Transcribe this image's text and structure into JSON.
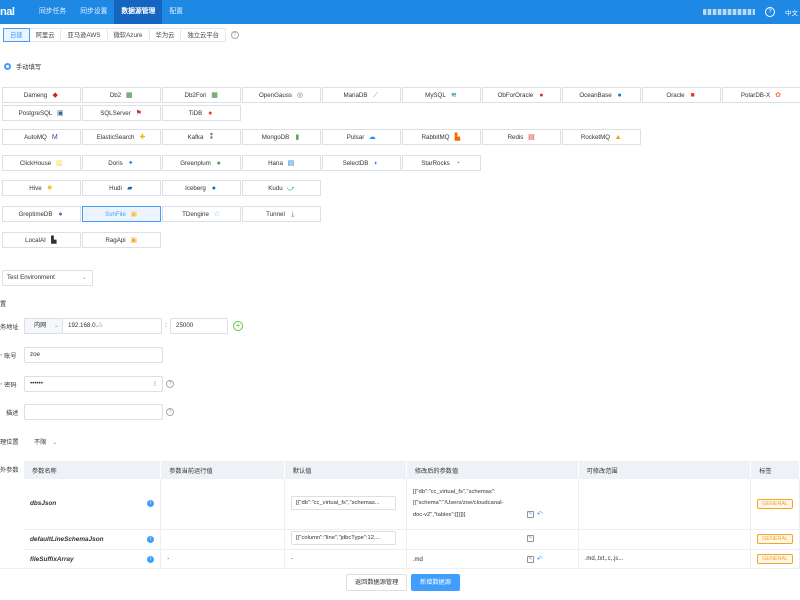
{
  "topbar": {
    "logo": "nal",
    "nav": [
      "同步任务",
      "同步设置",
      "数据源管理",
      "配置"
    ],
    "active_index": 2,
    "help": "?",
    "lang": "中文"
  },
  "cloud_tabs": [
    "自建",
    "阿里云",
    "亚马逊AWS",
    "微软Azure",
    "华为云",
    "独立云平台"
  ],
  "cloud_active": 0,
  "manual_label": "手动填写",
  "datasources": [
    [
      {
        "name": "Dameng",
        "icon": "dameng-icon",
        "color": "#c62828"
      },
      {
        "name": "Db2",
        "icon": "db2-icon",
        "color": "#2e7d32"
      },
      {
        "name": "Db2Fori",
        "icon": "db2fori-icon",
        "color": "#2e7d32"
      },
      {
        "name": "OpenGauss",
        "icon": "opengauss-icon",
        "color": "#757575"
      },
      {
        "name": "MariaDB",
        "icon": "mariadb-icon",
        "color": "#c0765a"
      },
      {
        "name": "MySQL",
        "icon": "mysql-icon",
        "color": "#00758f"
      },
      {
        "name": "ObForOracle",
        "icon": "obfororacle-icon",
        "color": "#d32f2f"
      },
      {
        "name": "OceanBase",
        "icon": "oceanbase-icon",
        "color": "#1976d2"
      },
      {
        "name": "Oracle",
        "icon": "oracle-icon",
        "color": "#e53935"
      },
      {
        "name": "PolarDB-X",
        "icon": "polardbx-icon",
        "color": "#ff7043"
      }
    ],
    [
      {
        "name": "PostgreSQL",
        "icon": "postgresql-icon",
        "color": "#336791"
      },
      {
        "name": "SQLServer",
        "icon": "sqlserver-icon",
        "color": "#d32f2f"
      },
      {
        "name": "TiDB",
        "icon": "tidb-icon",
        "color": "#e53935"
      }
    ],
    [
      {
        "name": "AutoMQ",
        "icon": "automq-icon",
        "color": "#3949ab"
      },
      {
        "name": "ElasticSearch",
        "icon": "elasticsearch-icon",
        "color": "#f4b400"
      },
      {
        "name": "Kafka",
        "icon": "kafka-icon",
        "color": "#333333"
      },
      {
        "name": "MongoDB",
        "icon": "mongodb-icon",
        "color": "#4caf50"
      },
      {
        "name": "Pulsar",
        "icon": "pulsar-icon",
        "color": "#188fff"
      },
      {
        "name": "RabbitMQ",
        "icon": "rabbitmq-icon",
        "color": "#ff6600"
      },
      {
        "name": "Redis",
        "icon": "redis-icon",
        "color": "#d32f2f"
      },
      {
        "name": "RocketMQ",
        "icon": "rocketmq-icon",
        "color": "#ff9800"
      }
    ],
    [
      {
        "name": "ClickHouse",
        "icon": "clickhouse-icon",
        "color": "#fdd835"
      },
      {
        "name": "Doris",
        "icon": "doris-icon",
        "color": "#1e88e5"
      },
      {
        "name": "Greenplum",
        "icon": "greenplum-icon",
        "color": "#43a047"
      },
      {
        "name": "Hana",
        "icon": "hana-icon",
        "color": "#1976d2"
      },
      {
        "name": "SelectDB",
        "icon": "selectdb-icon",
        "color": "#1e88e5"
      },
      {
        "name": "StarRocks",
        "icon": "starrocks-icon",
        "color": "#1e88e5"
      }
    ],
    [
      {
        "name": "Hive",
        "icon": "hive-icon",
        "color": "#fbc02d"
      },
      {
        "name": "Hudi",
        "icon": "hudi-icon",
        "color": "#1565c0"
      },
      {
        "name": "Iceberg",
        "icon": "iceberg-icon",
        "color": "#0277bd"
      },
      {
        "name": "Kudu",
        "icon": "kudu-icon",
        "color": "#26a69a"
      }
    ],
    [
      {
        "name": "GreptimeDB",
        "icon": "greptimedb-icon",
        "color": "#7e57c2"
      },
      {
        "name": "SshFile",
        "icon": "sshfile-icon",
        "color": "#fbc02d"
      },
      {
        "name": "TDengine",
        "icon": "tdengine-icon",
        "color": "#4fc3f7"
      },
      {
        "name": "Tunnel",
        "icon": "tunnel-icon",
        "color": "#757575"
      }
    ],
    [
      {
        "name": "LocalAI",
        "icon": "localai-icon",
        "color": "#263238"
      },
      {
        "name": "RagApi",
        "icon": "ragapi-icon",
        "color": "#f9a825"
      }
    ]
  ],
  "selected_ds": "SshFile",
  "env": {
    "value": "Test Environment"
  },
  "form": {
    "config_label": "置",
    "addr_label": "务地址",
    "net_type": "内网",
    "host": "192.168.0.",
    "port": "25000",
    "account_label": "账号",
    "account": "zoe",
    "password_label": "密码",
    "password": "••••••",
    "desc_label": "描述",
    "deploy_label": "理位置",
    "deploy_value": "不限",
    "extra_label": "外参数"
  },
  "table": {
    "headers": [
      "参数名称",
      "参数当前运行值",
      "默认值",
      "修改后的参数值",
      "可修改范围",
      "标签"
    ],
    "rows": [
      {
        "name": "dbsJson",
        "current": "",
        "default": "[{\"db\":\"cc_virtual_fs\",\"schemas...",
        "modified_lines": [
          "[{\"db\":\"cc_virtual_fs\",\"schemas\":",
          "[{\"schema\":\"/Users/zoe/cloudcanal-",
          "doc-v2\",\"tables\":[]}]}]"
        ],
        "range": "",
        "tag": "GENERAL"
      },
      {
        "name": "defaultLineSchemaJson",
        "current": "",
        "default": "[{\"column\":\"line\",\"jdbcType\":12,...",
        "modified_lines": [],
        "range": "",
        "tag": "GENERAL"
      },
      {
        "name": "fileSuffixArray",
        "current": "-",
        "default": "-",
        "modified_lines": [
          ".md"
        ],
        "range": ".md,.txt,.c,.js...",
        "tag": "GENERAL"
      }
    ]
  },
  "buttons": {
    "back": "返回数据源管理",
    "add": "新增数据源"
  }
}
